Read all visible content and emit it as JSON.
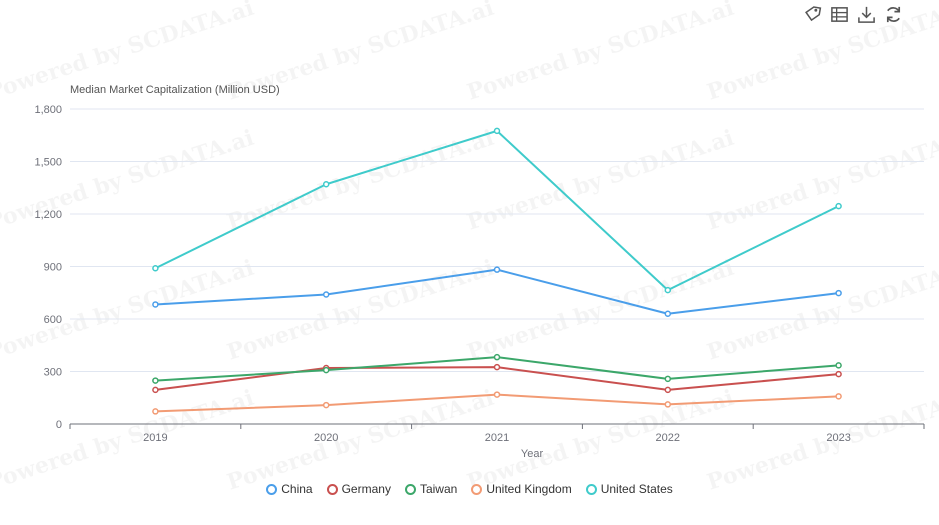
{
  "watermark": "Powered by SCDATA.ai",
  "toolbox": [
    {
      "name": "tag-icon",
      "title": "Label"
    },
    {
      "name": "data-view-icon",
      "title": "Data View"
    },
    {
      "name": "download-icon",
      "title": "Save as Image"
    },
    {
      "name": "refresh-icon",
      "title": "Restore"
    }
  ],
  "chart_data": {
    "type": "line",
    "ylabel": "Median Market Capitalization (Million USD)",
    "xlabel": "Year",
    "categories": [
      "2019",
      "2020",
      "2021",
      "2022",
      "2023"
    ],
    "ylim": [
      0,
      1800
    ],
    "yticks": [
      "0",
      "300",
      "600",
      "900",
      "1,200",
      "1,500",
      "1,800"
    ],
    "ytick_values": [
      0,
      300,
      600,
      900,
      1200,
      1500,
      1800
    ],
    "grid": true,
    "legend_position": "bottom",
    "series": [
      {
        "name": "China",
        "color": "#4a9eea",
        "values": [
          683,
          740,
          882,
          630,
          748
        ]
      },
      {
        "name": "Germany",
        "color": "#c9504f",
        "values": [
          195,
          320,
          325,
          195,
          285
        ]
      },
      {
        "name": "Taiwan",
        "color": "#3ca76a",
        "values": [
          248,
          308,
          382,
          258,
          335
        ]
      },
      {
        "name": "United Kingdom",
        "color": "#f29b74",
        "values": [
          72,
          108,
          168,
          112,
          158
        ]
      },
      {
        "name": "United States",
        "color": "#3fcbcb",
        "values": [
          890,
          1370,
          1675,
          765,
          1245
        ]
      }
    ]
  }
}
